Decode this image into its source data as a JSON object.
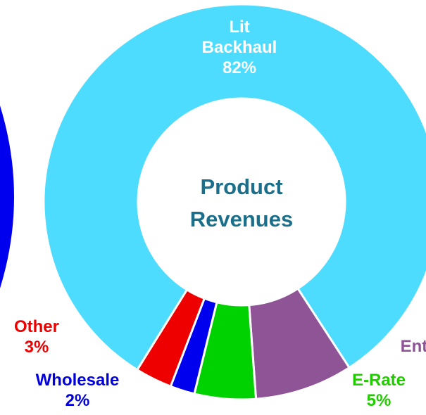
{
  "chart_data": {
    "type": "donut",
    "center_label": "Product Revenues",
    "categories": [
      "Lit Backhaul",
      "Enterprise",
      "E-Rate",
      "Wholesale",
      "Other"
    ],
    "values": [
      82,
      8,
      5,
      2,
      3
    ],
    "value_labels": [
      "82%",
      null,
      "5%",
      "2%",
      "3%"
    ],
    "colors": [
      "#4ddcfd",
      "#8e5496",
      "#00d100",
      "#0000ee",
      "#ee0000"
    ]
  }
}
